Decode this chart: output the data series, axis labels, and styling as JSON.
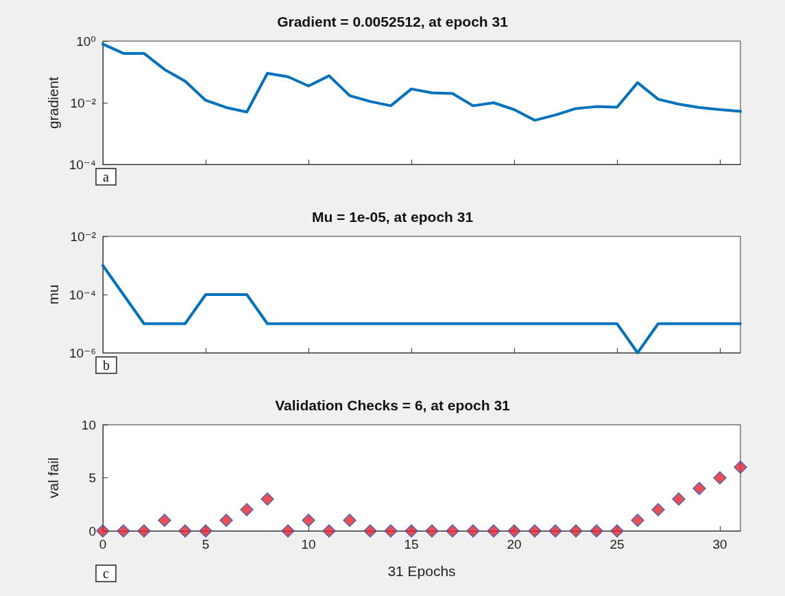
{
  "chart_data": [
    {
      "type": "line",
      "title": "Gradient = 0.0052512, at epoch 31",
      "ylabel": "gradient",
      "annotations": [
        "a"
      ],
      "x": [
        0,
        1,
        2,
        3,
        4,
        5,
        6,
        7,
        8,
        9,
        10,
        11,
        12,
        13,
        14,
        15,
        16,
        17,
        18,
        19,
        20,
        21,
        22,
        23,
        24,
        25,
        26,
        27,
        28,
        29,
        30,
        31
      ],
      "series": [
        {
          "color": "#0072bd",
          "values": [
            0.8,
            0.4,
            0.4,
            0.12,
            0.05,
            0.012,
            0.007,
            0.005,
            0.09,
            0.07,
            0.035,
            0.075,
            0.017,
            0.011,
            0.008,
            0.028,
            0.021,
            0.02,
            0.008,
            0.01,
            0.006,
            0.0027,
            0.004,
            0.0065,
            0.0075,
            0.0072,
            0.045,
            0.013,
            0.009,
            0.007,
            0.006,
            0.0052512
          ]
        }
      ],
      "log": "y",
      "xlim": [
        0,
        31
      ],
      "xticks": [
        0,
        5,
        10,
        15,
        20,
        25,
        30
      ],
      "ylim": [
        0.0001,
        1
      ],
      "yticks": [
        {
          "value": 0.0001,
          "label": "10⁻⁴"
        },
        {
          "value": 0.01,
          "label": "10⁻²"
        },
        {
          "value": 1,
          "label": "10⁰"
        }
      ],
      "tick_labels": "y",
      "marker": "none",
      "line_style": "solid"
    },
    {
      "type": "line",
      "title": "Mu = 1e-05, at epoch 31",
      "ylabel": "mu",
      "annotations": [
        "b"
      ],
      "x": [
        0,
        1,
        2,
        3,
        4,
        5,
        6,
        7,
        8,
        9,
        10,
        11,
        12,
        13,
        14,
        15,
        16,
        17,
        18,
        19,
        20,
        21,
        22,
        23,
        24,
        25,
        26,
        27,
        28,
        29,
        30,
        31
      ],
      "series": [
        {
          "color": "#0072bd",
          "values": [
            0.001,
            0.0001,
            1e-05,
            1e-05,
            1e-05,
            0.0001,
            0.0001,
            0.0001,
            1e-05,
            1e-05,
            1e-05,
            1e-05,
            1e-05,
            1e-05,
            1e-05,
            1e-05,
            1e-05,
            1e-05,
            1e-05,
            1e-05,
            1e-05,
            1e-05,
            1e-05,
            1e-05,
            1e-05,
            1e-05,
            1e-06,
            1e-05,
            1e-05,
            1e-05,
            1e-05,
            1e-05
          ]
        }
      ],
      "log": "y",
      "xlim": [
        0,
        31
      ],
      "xticks": [
        0,
        5,
        10,
        15,
        20,
        25,
        30
      ],
      "ylim": [
        1e-06,
        0.01
      ],
      "yticks": [
        {
          "value": 1e-06,
          "label": "10⁻⁶"
        },
        {
          "value": 0.0001,
          "label": "10⁻⁴"
        },
        {
          "value": 0.01,
          "label": "10⁻²"
        }
      ],
      "tick_labels": "y",
      "marker": "none",
      "line_style": "solid"
    },
    {
      "type": "scatter",
      "title": "Validation Checks = 6, at epoch 31",
      "ylabel": "val fail",
      "xlabel": "31 Epochs",
      "annotations": [
        "c"
      ],
      "x": [
        0,
        1,
        2,
        3,
        4,
        5,
        6,
        7,
        8,
        9,
        10,
        11,
        12,
        13,
        14,
        15,
        16,
        17,
        18,
        19,
        20,
        21,
        22,
        23,
        24,
        25,
        26,
        27,
        28,
        29,
        30,
        31
      ],
      "series": [
        {
          "color": "#e8202a",
          "values": [
            0,
            0,
            0,
            1,
            0,
            0,
            1,
            2,
            3,
            0,
            1,
            0,
            1,
            0,
            0,
            0,
            0,
            0,
            0,
            0,
            0,
            0,
            0,
            0,
            0,
            0,
            1,
            2,
            3,
            4,
            5,
            6
          ]
        }
      ],
      "xlim": [
        0,
        31
      ],
      "xticks": [
        0,
        5,
        10,
        15,
        20,
        25,
        30
      ],
      "ylim": [
        0,
        10
      ],
      "yticks": [
        0,
        5,
        10
      ],
      "marker": "diamond"
    }
  ]
}
